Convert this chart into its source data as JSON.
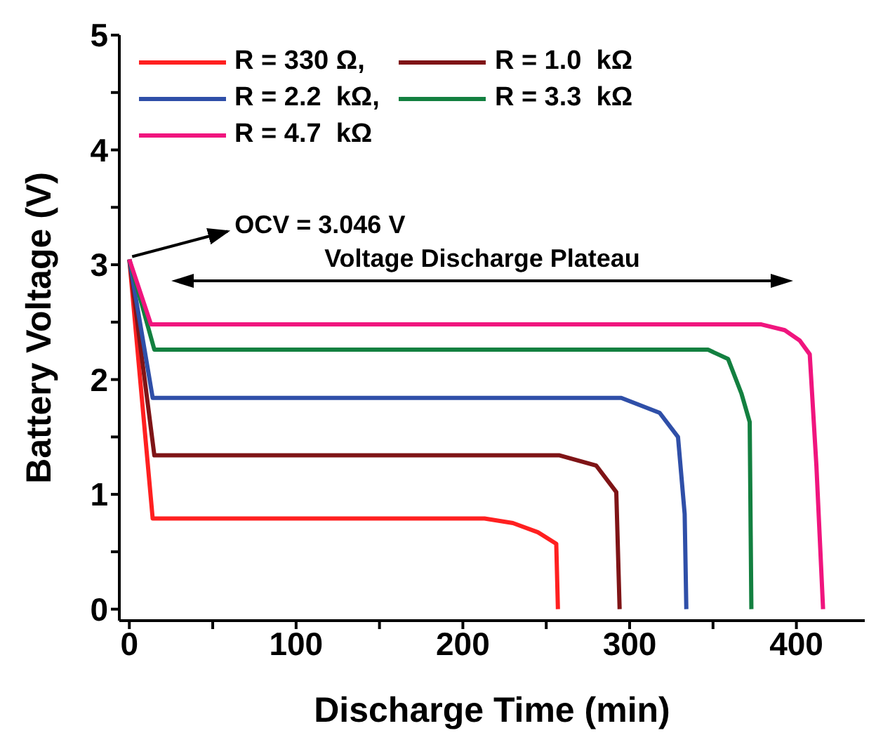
{
  "chart_data": {
    "type": "line",
    "xlabel": "Discharge Time (min)",
    "ylabel": "Battery Voltage (V)",
    "xlim": [
      -6,
      441
    ],
    "ylim": [
      -0.1,
      5
    ],
    "xticks": [
      0,
      {
        "value": 50,
        "label": null
      },
      100,
      {
        "value": 150,
        "label": null
      },
      200,
      {
        "value": 250,
        "label": null
      },
      300,
      {
        "value": 350,
        "label": null
      },
      400
    ],
    "yticks": [
      0,
      {
        "value": 0.5,
        "label": null
      },
      1,
      {
        "value": 1.5,
        "label": null
      },
      2,
      {
        "value": 2.5,
        "label": null
      },
      3,
      {
        "value": 3.5,
        "label": null
      },
      4,
      {
        "value": 4.5,
        "label": null
      },
      5
    ],
    "grid": false,
    "legend": "top left",
    "marker": "none",
    "line_style": "solid",
    "annotations": [
      {
        "text": "OCV = 3.046 V",
        "x": 0,
        "y": 3.046
      },
      "Voltage Discharge Plateau"
    ],
    "series": [
      {
        "name": "R = 330 Ω,",
        "color": "#ff2020",
        "x": [
          0,
          14,
          213,
          230,
          245,
          256,
          257
        ],
        "values": [
          3.046,
          0.79,
          0.79,
          0.75,
          0.67,
          0.57,
          0
        ]
      },
      {
        "name": "R = 1.0  kΩ",
        "color": "#7f1416",
        "x": [
          0,
          15,
          258,
          280,
          292,
          294
        ],
        "values": [
          3.046,
          1.34,
          1.34,
          1.25,
          1.02,
          0
        ]
      },
      {
        "name": "R = 2.2  kΩ,",
        "color": "#2f4fa8",
        "x": [
          0,
          14,
          295,
          318,
          329,
          333,
          334
        ],
        "values": [
          3.046,
          1.84,
          1.84,
          1.71,
          1.5,
          0.83,
          0
        ]
      },
      {
        "name": "R = 3.3  kΩ",
        "color": "#138040",
        "x": [
          0,
          15,
          347,
          359,
          367,
          372,
          373
        ],
        "values": [
          3.046,
          2.26,
          2.26,
          2.18,
          1.88,
          1.63,
          0
        ]
      },
      {
        "name": "R = 4.7  kΩ",
        "color": "#f0157e",
        "x": [
          0,
          13,
          379,
          393,
          402,
          408,
          412,
          416
        ],
        "values": [
          3.046,
          2.48,
          2.48,
          2.43,
          2.34,
          2.22,
          1.25,
          0
        ]
      }
    ]
  }
}
